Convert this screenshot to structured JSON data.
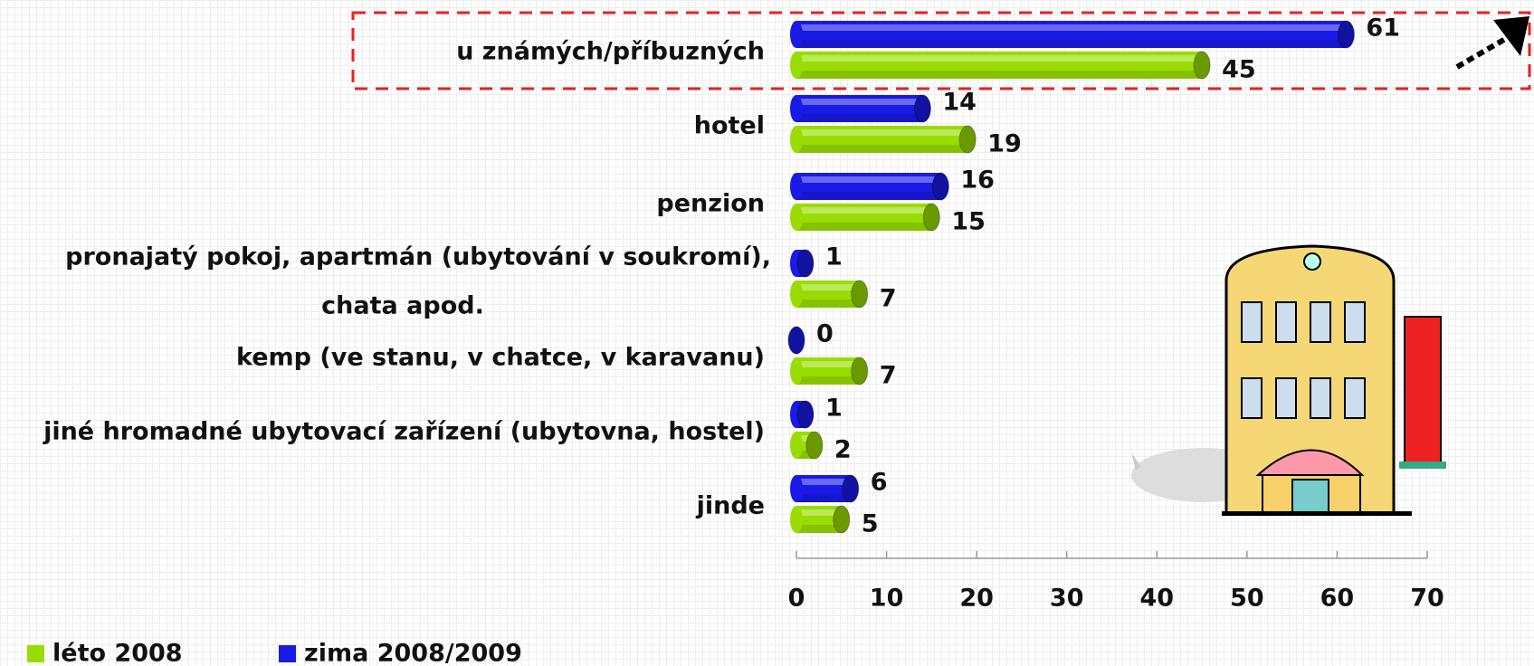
{
  "chart_data": {
    "type": "bar",
    "orientation": "horizontal",
    "categories": [
      "u známých/příbuzných",
      "hotel",
      "penzion",
      [
        "pronajatý pokoj, apartmán (ubytování v soukromí),",
        "chata apod."
      ],
      "kemp (ve stanu, v chatce, v karavanu)",
      "jiné hromadné ubytovací zařízení (ubytovna, hostel)",
      "jinde"
    ],
    "series": [
      {
        "name": "zima 2008/2009",
        "color": "#1a1ae6",
        "values": [
          61,
          14,
          16,
          1,
          0,
          1,
          6
        ]
      },
      {
        "name": "léto 2008",
        "color": "#99dd00",
        "values": [
          45,
          19,
          15,
          7,
          7,
          2,
          5
        ]
      }
    ],
    "xlim": [
      0,
      70
    ],
    "xticks": [
      0,
      10,
      20,
      30,
      40,
      50,
      60,
      70
    ],
    "legend": "bottom-left"
  }
}
